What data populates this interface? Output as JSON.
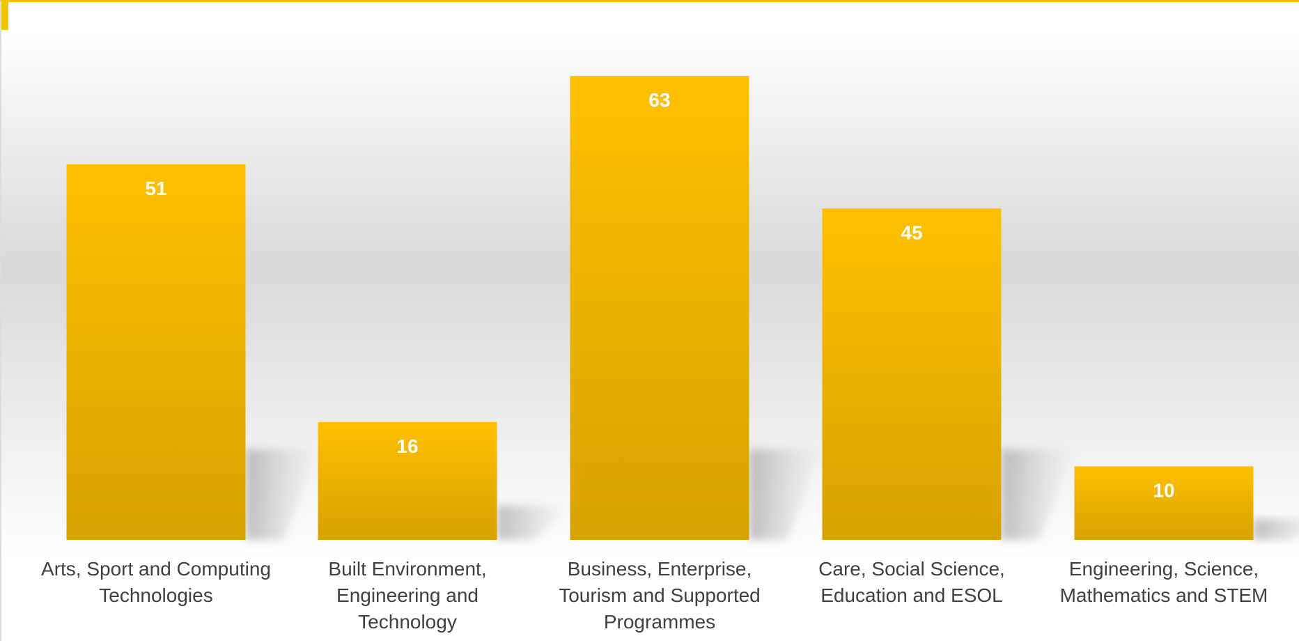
{
  "chart_data": {
    "type": "bar",
    "categories": [
      "Arts, Sport and Computing Technologies",
      "Built Environment, Engineering and Technology",
      "Business, Enterprise, Tourism and Supported Programmes",
      "Care, Social Science, Education and ESOL",
      "Engineering, Science, Mathematics and STEM"
    ],
    "category_lines": [
      [
        "Arts, Sport and Computing",
        "Technologies"
      ],
      [
        "Built Environment,",
        "Engineering and",
        "Technology"
      ],
      [
        "Business, Enterprise,",
        "Tourism and Supported",
        "Programmes"
      ],
      [
        "Care, Social Science,",
        "Education and ESOL"
      ],
      [
        "Engineering, Science,",
        "Mathematics and STEM"
      ]
    ],
    "values": [
      51,
      16,
      63,
      45,
      10
    ],
    "title": "",
    "xlabel": "",
    "ylabel": "",
    "ylim": [
      0,
      63
    ],
    "grid": false,
    "legend": "none",
    "data_labels": true,
    "colors": {
      "bar_top": "#fec000",
      "bar_bottom": "#d8a200",
      "data_label": "#ffffff",
      "category_text": "#404040",
      "accent": "#f5c400"
    }
  }
}
